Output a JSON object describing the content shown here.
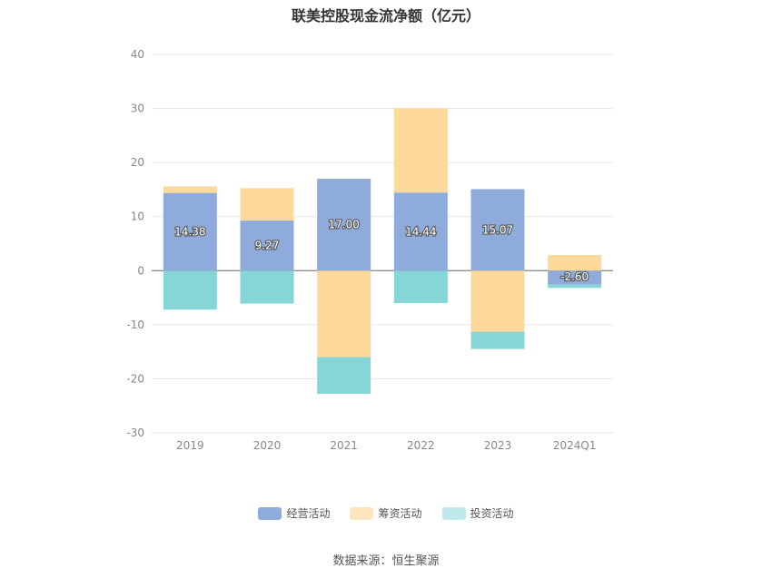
{
  "chart_data": {
    "type": "bar",
    "stacked": true,
    "title": "联美控股现金流净额（亿元）",
    "categories": [
      "2019",
      "2020",
      "2021",
      "2022",
      "2023",
      "2024Q1"
    ],
    "ylim": [
      -30,
      40
    ],
    "yticks": [
      40,
      30,
      20,
      10,
      0,
      -10,
      -20,
      -30
    ],
    "grid": true,
    "legend_position": "bottom",
    "series": [
      {
        "name": "经营活动",
        "color": "#8eabdb",
        "values": [
          14.38,
          9.27,
          17.0,
          14.44,
          15.07,
          -2.6
        ]
      },
      {
        "name": "筹资活动",
        "color": "#fed99c",
        "values": [
          1.2,
          6.0,
          -16.0,
          15.6,
          -11.3,
          2.9
        ]
      },
      {
        "name": "投资活动",
        "color": "#86d6d8",
        "values": [
          -7.2,
          -6.1,
          -6.8,
          -6.0,
          -3.2,
          -0.6
        ]
      }
    ],
    "data_labels": [
      "14.38",
      "9.27",
      "17.00",
      "14.44",
      "15.07",
      "-2.60"
    ]
  },
  "legend": {
    "items": [
      {
        "label": "经营活动",
        "color": "#8eabdb"
      },
      {
        "label": "筹资活动",
        "color": "#fde6bd"
      },
      {
        "label": "投资活动",
        "color": "#bfe9ea"
      }
    ]
  },
  "source_text": "数据来源：恒生聚源"
}
